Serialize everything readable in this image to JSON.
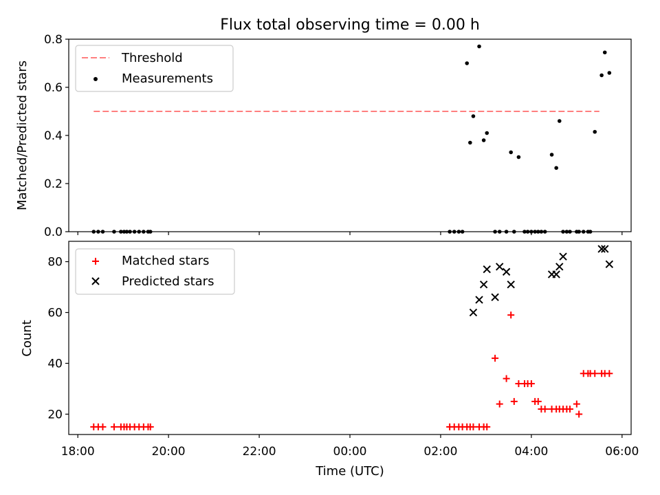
{
  "figure": {
    "title": "Flux total observing time = 0.00 h",
    "xlabel": "Time (UTC)",
    "x_ticks": [
      "18:00",
      "20:00",
      "22:00",
      "00:00",
      "02:00",
      "04:00",
      "06:00"
    ],
    "x_tick_hours": [
      0,
      2,
      4,
      6,
      8,
      10,
      12
    ],
    "x_range_hours": [
      -0.2,
      12.2
    ],
    "x_origin": "18:00"
  },
  "chart_data": [
    {
      "type": "scatter",
      "panel": "top",
      "ylabel": "Matched/Predicted stars",
      "ylim": [
        0,
        0.8
      ],
      "y_ticks": [
        0.0,
        0.2,
        0.4,
        0.6,
        0.8
      ],
      "y_tick_labels": [
        "0.0",
        "0.2",
        "0.4",
        "0.6",
        "0.8"
      ],
      "legend_position": "top-left",
      "threshold": {
        "name": "Threshold",
        "value": 0.5,
        "x_range": [
          0.35,
          11.5
        ],
        "color": "#ff7f7f"
      },
      "series": [
        {
          "name": "Measurements",
          "color": "#000000",
          "x": [
            0.35,
            0.45,
            0.55,
            0.8,
            0.95,
            1.02,
            1.08,
            1.15,
            1.25,
            1.35,
            1.45,
            1.55,
            1.6,
            8.2,
            8.3,
            8.4,
            8.48,
            8.58,
            8.65,
            8.72,
            8.85,
            8.95,
            9.02,
            9.2,
            9.3,
            9.45,
            9.55,
            9.62,
            9.72,
            9.85,
            9.92,
            10.0,
            10.08,
            10.15,
            10.22,
            10.3,
            10.45,
            10.55,
            10.62,
            10.7,
            10.78,
            10.85,
            11.0,
            11.05,
            11.15,
            11.25,
            11.3,
            11.4,
            11.55,
            11.62,
            11.72
          ],
          "y": [
            0,
            0,
            0,
            0,
            0,
            0,
            0,
            0,
            0,
            0,
            0,
            0,
            0,
            0,
            0,
            0,
            0,
            0.7,
            0.37,
            0.48,
            0.77,
            0.38,
            0.41,
            0,
            0,
            0,
            0.33,
            0,
            0.31,
            0,
            0,
            0,
            0,
            0,
            0,
            0,
            0.32,
            0.265,
            0.46,
            0,
            0,
            0,
            0,
            0,
            0,
            0,
            0,
            0.415,
            0.65,
            0.745,
            0.66
          ]
        }
      ]
    },
    {
      "type": "scatter",
      "panel": "bottom",
      "ylabel": "Count",
      "ylim": [
        12,
        88
      ],
      "y_ticks": [
        20,
        40,
        60,
        80
      ],
      "y_tick_labels": [
        "20",
        "40",
        "60",
        "80"
      ],
      "legend_position": "top-left",
      "series": [
        {
          "name": "Matched stars",
          "marker": "plus",
          "color": "#ff0000",
          "x": [
            0.35,
            0.45,
            0.55,
            0.8,
            0.95,
            1.02,
            1.08,
            1.15,
            1.25,
            1.35,
            1.45,
            1.55,
            1.6,
            8.2,
            8.3,
            8.4,
            8.48,
            8.58,
            8.65,
            8.72,
            8.85,
            8.95,
            9.02,
            9.2,
            9.3,
            9.45,
            9.55,
            9.62,
            9.72,
            9.85,
            9.92,
            10.0,
            10.08,
            10.15,
            10.22,
            10.3,
            10.45,
            10.55,
            10.62,
            10.7,
            10.78,
            10.85,
            11.0,
            11.05,
            11.15,
            11.25,
            11.3,
            11.4,
            11.55,
            11.62,
            11.72
          ],
          "y": [
            15,
            15,
            15,
            15,
            15,
            15,
            15,
            15,
            15,
            15,
            15,
            15,
            15,
            15,
            15,
            15,
            15,
            15,
            15,
            15,
            15,
            15,
            15,
            42,
            24,
            34,
            59,
            25,
            32,
            32,
            32,
            32,
            25,
            25,
            22,
            22,
            22,
            22,
            22,
            22,
            22,
            22,
            24,
            20,
            36,
            36,
            36,
            36,
            36,
            36,
            36
          ]
        },
        {
          "name": "Predicted stars",
          "marker": "x",
          "color": "#000000",
          "x": [
            8.72,
            8.85,
            8.95,
            9.02,
            9.2,
            9.3,
            9.45,
            9.55,
            10.45,
            10.55,
            10.62,
            10.7,
            11.55,
            11.62,
            11.72
          ],
          "y": [
            60,
            65,
            71,
            77,
            66,
            78,
            76,
            71,
            75,
            75,
            78,
            82,
            85,
            85,
            79
          ]
        }
      ]
    }
  ]
}
